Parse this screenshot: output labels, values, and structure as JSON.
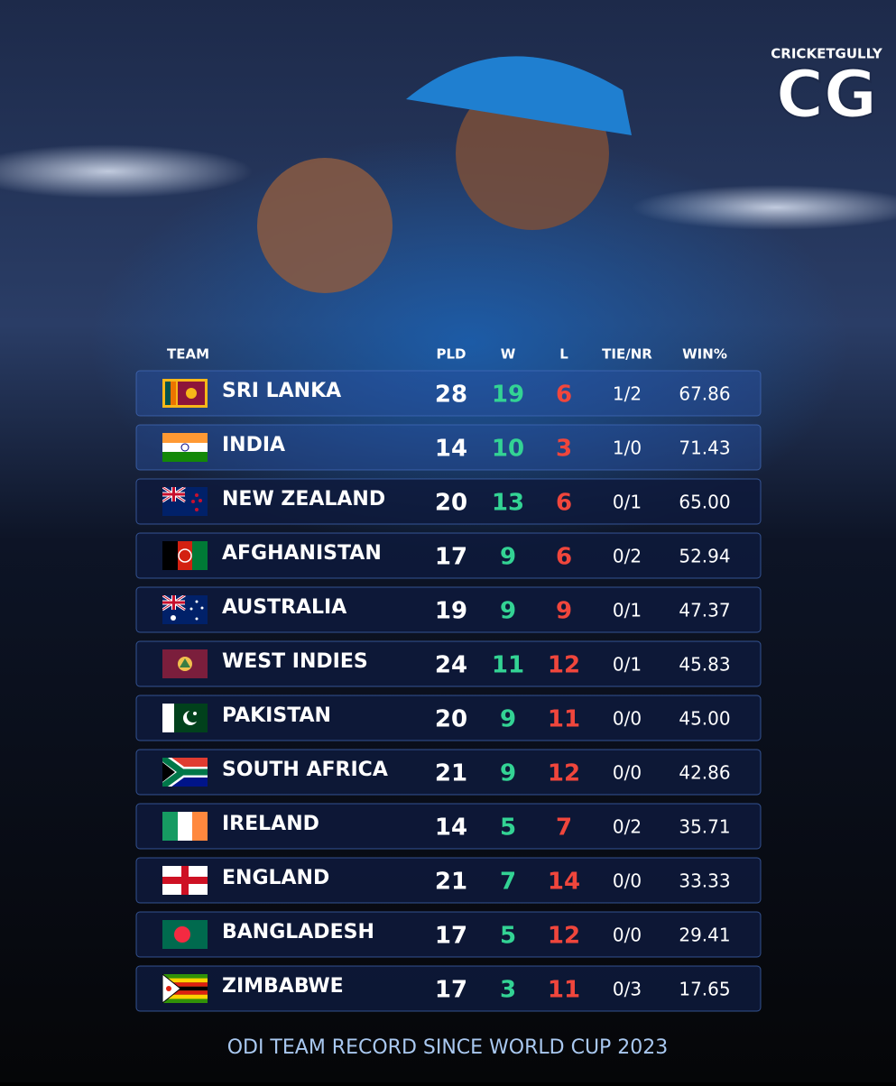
{
  "logo": {
    "brand": "CRICKETGULLY",
    "mark": "CG"
  },
  "table": {
    "header": [
      "TEAM",
      "PLD",
      "W",
      "L",
      "TIE/NR",
      "WIN%"
    ],
    "rows": [
      [
        "SRI LANKA",
        "28",
        "19",
        "6",
        "1/2",
        "67.86"
      ],
      [
        "INDIA",
        "14",
        "10",
        "3",
        "1/0",
        "71.43"
      ],
      [
        "NEW ZEALAND",
        "20",
        "13",
        "6",
        "0/1",
        "65.00"
      ],
      [
        "AFGHANISTAN",
        "17",
        "9",
        "6",
        "0/2",
        "52.94"
      ],
      [
        "AUSTRALIA",
        "19",
        "9",
        "9",
        "0/1",
        "47.37"
      ],
      [
        "WEST INDIES",
        "24",
        "11",
        "12",
        "0/1",
        "45.83"
      ],
      [
        "PAKISTAN",
        "20",
        "9",
        "11",
        "0/0",
        "45.00"
      ],
      [
        "SOUTH AFRICA",
        "21",
        "9",
        "12",
        "0/0",
        "42.86"
      ],
      [
        "IRELAND",
        "14",
        "5",
        "7",
        "0/2",
        "35.71"
      ],
      [
        "ENGLAND",
        "21",
        "7",
        "14",
        "0/0",
        "33.33"
      ],
      [
        "BANGLADESH",
        "17",
        "5",
        "12",
        "0/0",
        "29.41"
      ],
      [
        "ZIMBABWE",
        "17",
        "3",
        "11",
        "0/3",
        "17.65"
      ]
    ]
  },
  "footer": "ODI TEAM RECORD SINCE WORLD CUP 2023"
}
